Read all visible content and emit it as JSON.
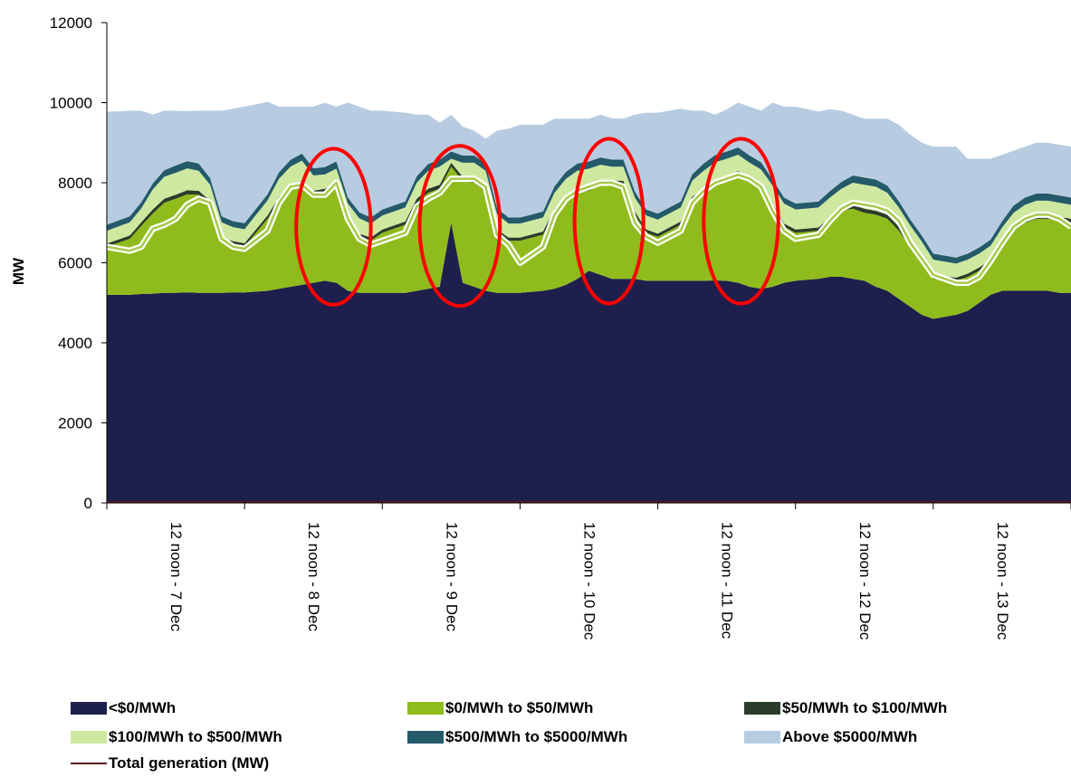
{
  "chart_data": {
    "type": "area",
    "stacked": true,
    "ylabel": "MW",
    "ylim": [
      0,
      12000
    ],
    "yticks": [
      0,
      2000,
      4000,
      6000,
      8000,
      10000,
      12000
    ],
    "x_unit": "hours since 00:00 on 7 Dec",
    "xlim": [
      0,
      168
    ],
    "x_tick_labels": [
      "12 noon - 7 Dec",
      "12 noon - 8 Dec",
      "12 noon - 9 Dec",
      "12 noon - 10 Dec",
      "12 noon - 11 Dec",
      "12 noon - 12 Dec",
      "12 noon - 13 Dec"
    ],
    "x_tick_hours": [
      12,
      36,
      60,
      84,
      108,
      132,
      156
    ],
    "grid": false,
    "legend_position": "bottom",
    "x": [
      0,
      4,
      6,
      8,
      10,
      12,
      14,
      16,
      18,
      20,
      22,
      24,
      28,
      30,
      32,
      34,
      36,
      38,
      40,
      42,
      44,
      46,
      48,
      52,
      54,
      56,
      58,
      60,
      62,
      64,
      66,
      68,
      70,
      72,
      76,
      78,
      80,
      82,
      84,
      86,
      88,
      90,
      92,
      94,
      96,
      100,
      102,
      104,
      106,
      108,
      110,
      112,
      114,
      116,
      118,
      120,
      124,
      126,
      128,
      130,
      132,
      134,
      136,
      138,
      140,
      142,
      144,
      148,
      150,
      152,
      154,
      156,
      158,
      160,
      162,
      164,
      166,
      168
    ],
    "series": [
      {
        "name": "<$0/MWh",
        "color": "#1f1f4d",
        "values": [
          5200,
          5200,
          5220,
          5230,
          5250,
          5250,
          5260,
          5250,
          5250,
          5250,
          5260,
          5260,
          5300,
          5350,
          5400,
          5450,
          5500,
          5550,
          5500,
          5300,
          5250,
          5250,
          5250,
          5250,
          5300,
          5350,
          5400,
          7000,
          5500,
          5400,
          5300,
          5250,
          5250,
          5250,
          5300,
          5350,
          5450,
          5600,
          5800,
          5700,
          5600,
          5600,
          5600,
          5550,
          5550,
          5550,
          5550,
          5550,
          5560,
          5550,
          5500,
          5400,
          5350,
          5400,
          5500,
          5550,
          5600,
          5650,
          5650,
          5600,
          5550,
          5400,
          5300,
          5100,
          4900,
          4700,
          4600,
          4700,
          4800,
          5000,
          5200,
          5300,
          5300,
          5300,
          5300,
          5300,
          5250,
          5250
        ]
      },
      {
        "name": "$0/MWh to $50/MWh",
        "color": "#8fbc1c",
        "values": [
          1200,
          1400,
          1700,
          2000,
          2250,
          2350,
          2450,
          2450,
          2200,
          1300,
          1200,
          1150,
          1800,
          2200,
          2400,
          2500,
          2200,
          2200,
          2350,
          1700,
          1400,
          1300,
          1500,
          1700,
          2200,
          2400,
          2450,
          1400,
          2550,
          2600,
          2500,
          1500,
          1300,
          1300,
          1400,
          1900,
          2100,
          2150,
          2000,
          2250,
          2350,
          2350,
          1600,
          1200,
          1100,
          1400,
          2000,
          2200,
          2400,
          2500,
          2700,
          2650,
          2500,
          2000,
          1400,
          1200,
          1200,
          1400,
          1650,
          1750,
          1700,
          1800,
          1800,
          1700,
          1500,
          1350,
          1000,
          850,
          850,
          800,
          800,
          1150,
          1500,
          1700,
          1800,
          1800,
          1800,
          1750
        ]
      },
      {
        "name": "$50/MWh to $100/MWh",
        "color": "#2a3d2a",
        "values": [
          80,
          80,
          90,
          100,
          100,
          100,
          100,
          100,
          100,
          80,
          80,
          80,
          80,
          100,
          100,
          100,
          100,
          100,
          100,
          80,
          80,
          80,
          80,
          80,
          100,
          100,
          100,
          100,
          100,
          100,
          100,
          80,
          80,
          80,
          80,
          100,
          100,
          100,
          100,
          100,
          100,
          100,
          80,
          80,
          80,
          80,
          100,
          100,
          100,
          100,
          100,
          100,
          100,
          80,
          80,
          80,
          80,
          80,
          100,
          100,
          100,
          100,
          100,
          100,
          80,
          80,
          80,
          80,
          80,
          80,
          80,
          80,
          100,
          100,
          100,
          100,
          100,
          100
        ]
      },
      {
        "name": "$100/MWh to $500/MWh",
        "color": "#cfe8a0",
        "values": [
          320,
          330,
          350,
          500,
          550,
          550,
          550,
          500,
          400,
          380,
          350,
          350,
          380,
          450,
          500,
          500,
          380,
          360,
          400,
          400,
          380,
          350,
          350,
          350,
          400,
          450,
          450,
          100,
          350,
          400,
          400,
          380,
          350,
          350,
          350,
          400,
          450,
          450,
          450,
          400,
          350,
          350,
          350,
          350,
          350,
          350,
          400,
          450,
          450,
          450,
          400,
          350,
          380,
          450,
          500,
          500,
          500,
          500,
          450,
          550,
          600,
          600,
          550,
          480,
          450,
          400,
          400,
          350,
          350,
          350,
          350,
          350,
          350,
          350,
          350,
          350,
          350,
          350
        ]
      },
      {
        "name": "$500/MWh to $5000/MWh",
        "color": "#245a6a",
        "values": [
          150,
          150,
          150,
          150,
          160,
          180,
          180,
          180,
          170,
          150,
          150,
          150,
          150,
          160,
          170,
          180,
          180,
          180,
          180,
          150,
          150,
          150,
          150,
          150,
          160,
          170,
          180,
          180,
          180,
          180,
          180,
          150,
          150,
          150,
          150,
          160,
          170,
          180,
          180,
          180,
          180,
          180,
          150,
          150,
          150,
          150,
          160,
          180,
          180,
          180,
          180,
          180,
          180,
          150,
          150,
          150,
          150,
          160,
          170,
          180,
          180,
          180,
          180,
          160,
          150,
          150,
          150,
          150,
          150,
          150,
          150,
          160,
          180,
          180,
          180,
          180,
          180,
          180
        ]
      },
      {
        "name": "Above $5000/MWh",
        "color": "#b7cce0",
        "values": [
          2820,
          2640,
          2290,
          1720,
          1490,
          1370,
          1250,
          1320,
          1680,
          2640,
          2810,
          2910,
          2310,
          1640,
          1330,
          1170,
          1540,
          1610,
          1370,
          2370,
          2640,
          2670,
          2470,
          2220,
          1540,
          1230,
          920,
          920,
          720,
          620,
          620,
          1940,
          2220,
          2320,
          2170,
          1690,
          1330,
          1120,
          1070,
          1070,
          1030,
          1020,
          1920,
          2420,
          2520,
          2320,
          1590,
          1320,
          1010,
          1050,
          1120,
          1220,
          1290,
          1920,
          2270,
          2420,
          2250,
          2050,
          1780,
          1520,
          1470,
          1520,
          1670,
          1910,
          2120,
          2320,
          2670,
          2770,
          2370,
          2220,
          2020,
          1660,
          1370,
          1270,
          1270,
          1270,
          1270,
          1270
        ]
      },
      {
        "name": "Total generation (MW)",
        "type": "line",
        "color": "#5b1a1a",
        "values": [
          6400,
          6300,
          6400,
          6850,
          6950,
          7100,
          7450,
          7600,
          7500,
          6600,
          6400,
          6350,
          6800,
          7500,
          7900,
          7950,
          7700,
          7700,
          8000,
          7100,
          6600,
          6450,
          6550,
          6750,
          7400,
          7600,
          7750,
          8100,
          8100,
          8100,
          7900,
          6700,
          6450,
          6000,
          6400,
          7200,
          7600,
          7800,
          7900,
          8000,
          8000,
          7900,
          7000,
          6650,
          6500,
          6800,
          7500,
          7800,
          8000,
          8100,
          8200,
          8100,
          7900,
          7300,
          6800,
          6600,
          6700,
          7050,
          7350,
          7500,
          7450,
          7400,
          7300,
          7050,
          6500,
          6100,
          5700,
          5500,
          5500,
          5650,
          6050,
          6500,
          6900,
          7100,
          7200,
          7200,
          7100,
          6900
        ]
      }
    ],
    "annotations": [
      {
        "type": "ellipse",
        "color": "#ff0000",
        "cx_hour": 39.5,
        "cy": 6900,
        "rx_hours": 6.5,
        "ry": 1950
      },
      {
        "type": "ellipse",
        "color": "#ff0000",
        "cx_hour": 61.5,
        "cy": 6920,
        "rx_hours": 7.0,
        "ry": 2000
      },
      {
        "type": "ellipse",
        "color": "#ff0000",
        "cx_hour": 87.5,
        "cy": 7040,
        "rx_hours": 6.0,
        "ry": 2060
      },
      {
        "type": "ellipse",
        "color": "#ff0000",
        "cx_hour": 110.5,
        "cy": 7040,
        "rx_hours": 6.5,
        "ry": 2060
      }
    ],
    "legend": [
      {
        "label": "<$0/MWh",
        "kind": "swatch",
        "color": "#1f1f4d"
      },
      {
        "label": "$0/MWh to $50/MWh",
        "kind": "swatch",
        "color": "#8fbc1c"
      },
      {
        "label": "$50/MWh to $100/MWh",
        "kind": "swatch",
        "color": "#2a3d2a"
      },
      {
        "label": "$100/MWh to $500/MWh",
        "kind": "swatch",
        "color": "#cfe8a0"
      },
      {
        "label": "$500/MWh to $5000/MWh",
        "kind": "swatch",
        "color": "#245a6a"
      },
      {
        "label": "Above $5000/MWh",
        "kind": "swatch",
        "color": "#b7cce0"
      },
      {
        "label": "Total generation (MW)",
        "kind": "line",
        "color": "#5b1a1a"
      }
    ]
  }
}
